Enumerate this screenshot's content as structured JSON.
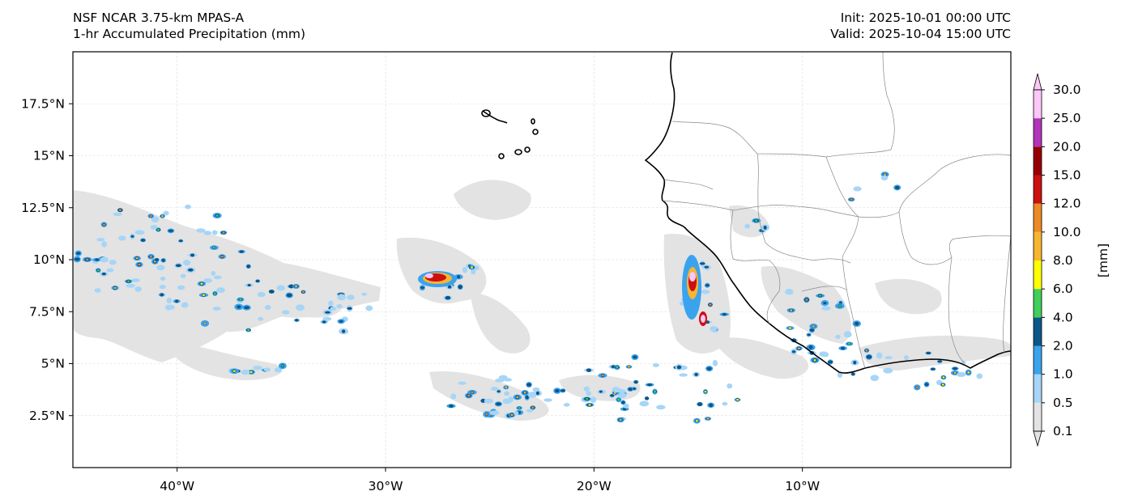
{
  "header": {
    "title_line1": "NSF NCAR 3.75-km MPAS-A",
    "title_line2": "1-hr Accumulated Precipitation (mm)",
    "init": "Init: 2025-10-01 00:00 UTC",
    "valid": "Valid: 2025-10-04 15:00 UTC"
  },
  "map": {
    "lon_range": [
      -45,
      0
    ],
    "lat_range": [
      0,
      20
    ],
    "lat_ticks": [
      {
        "value": 2.5,
        "label": "2.5°N"
      },
      {
        "value": 5,
        "label": "5°N"
      },
      {
        "value": 7.5,
        "label": "7.5°N"
      },
      {
        "value": 10,
        "label": "10°N"
      },
      {
        "value": 12.5,
        "label": "12.5°N"
      },
      {
        "value": 15,
        "label": "15°N"
      },
      {
        "value": 17.5,
        "label": "17.5°N"
      }
    ],
    "lon_ticks": [
      {
        "value": -40,
        "label": "40°W"
      },
      {
        "value": -30,
        "label": "30°W"
      },
      {
        "value": -20,
        "label": "20°W"
      },
      {
        "value": -10,
        "label": "10°W"
      }
    ]
  },
  "colorbar": {
    "unit_label": "[mm]",
    "levels": [
      "0.1",
      "0.5",
      "1.0",
      "2.0",
      "4.0",
      "6.0",
      "8.0",
      "10.0",
      "12.0",
      "15.0",
      "20.0",
      "25.0",
      "30.0"
    ],
    "colors": [
      "#e3e3e3",
      "#a6d5f7",
      "#3aa3ee",
      "#0d5688",
      "#41cf5c",
      "#ffff00",
      "#f7b530",
      "#ec8a26",
      "#cc1010",
      "#980000",
      "#b234ba",
      "#fbc7f7"
    ]
  }
}
